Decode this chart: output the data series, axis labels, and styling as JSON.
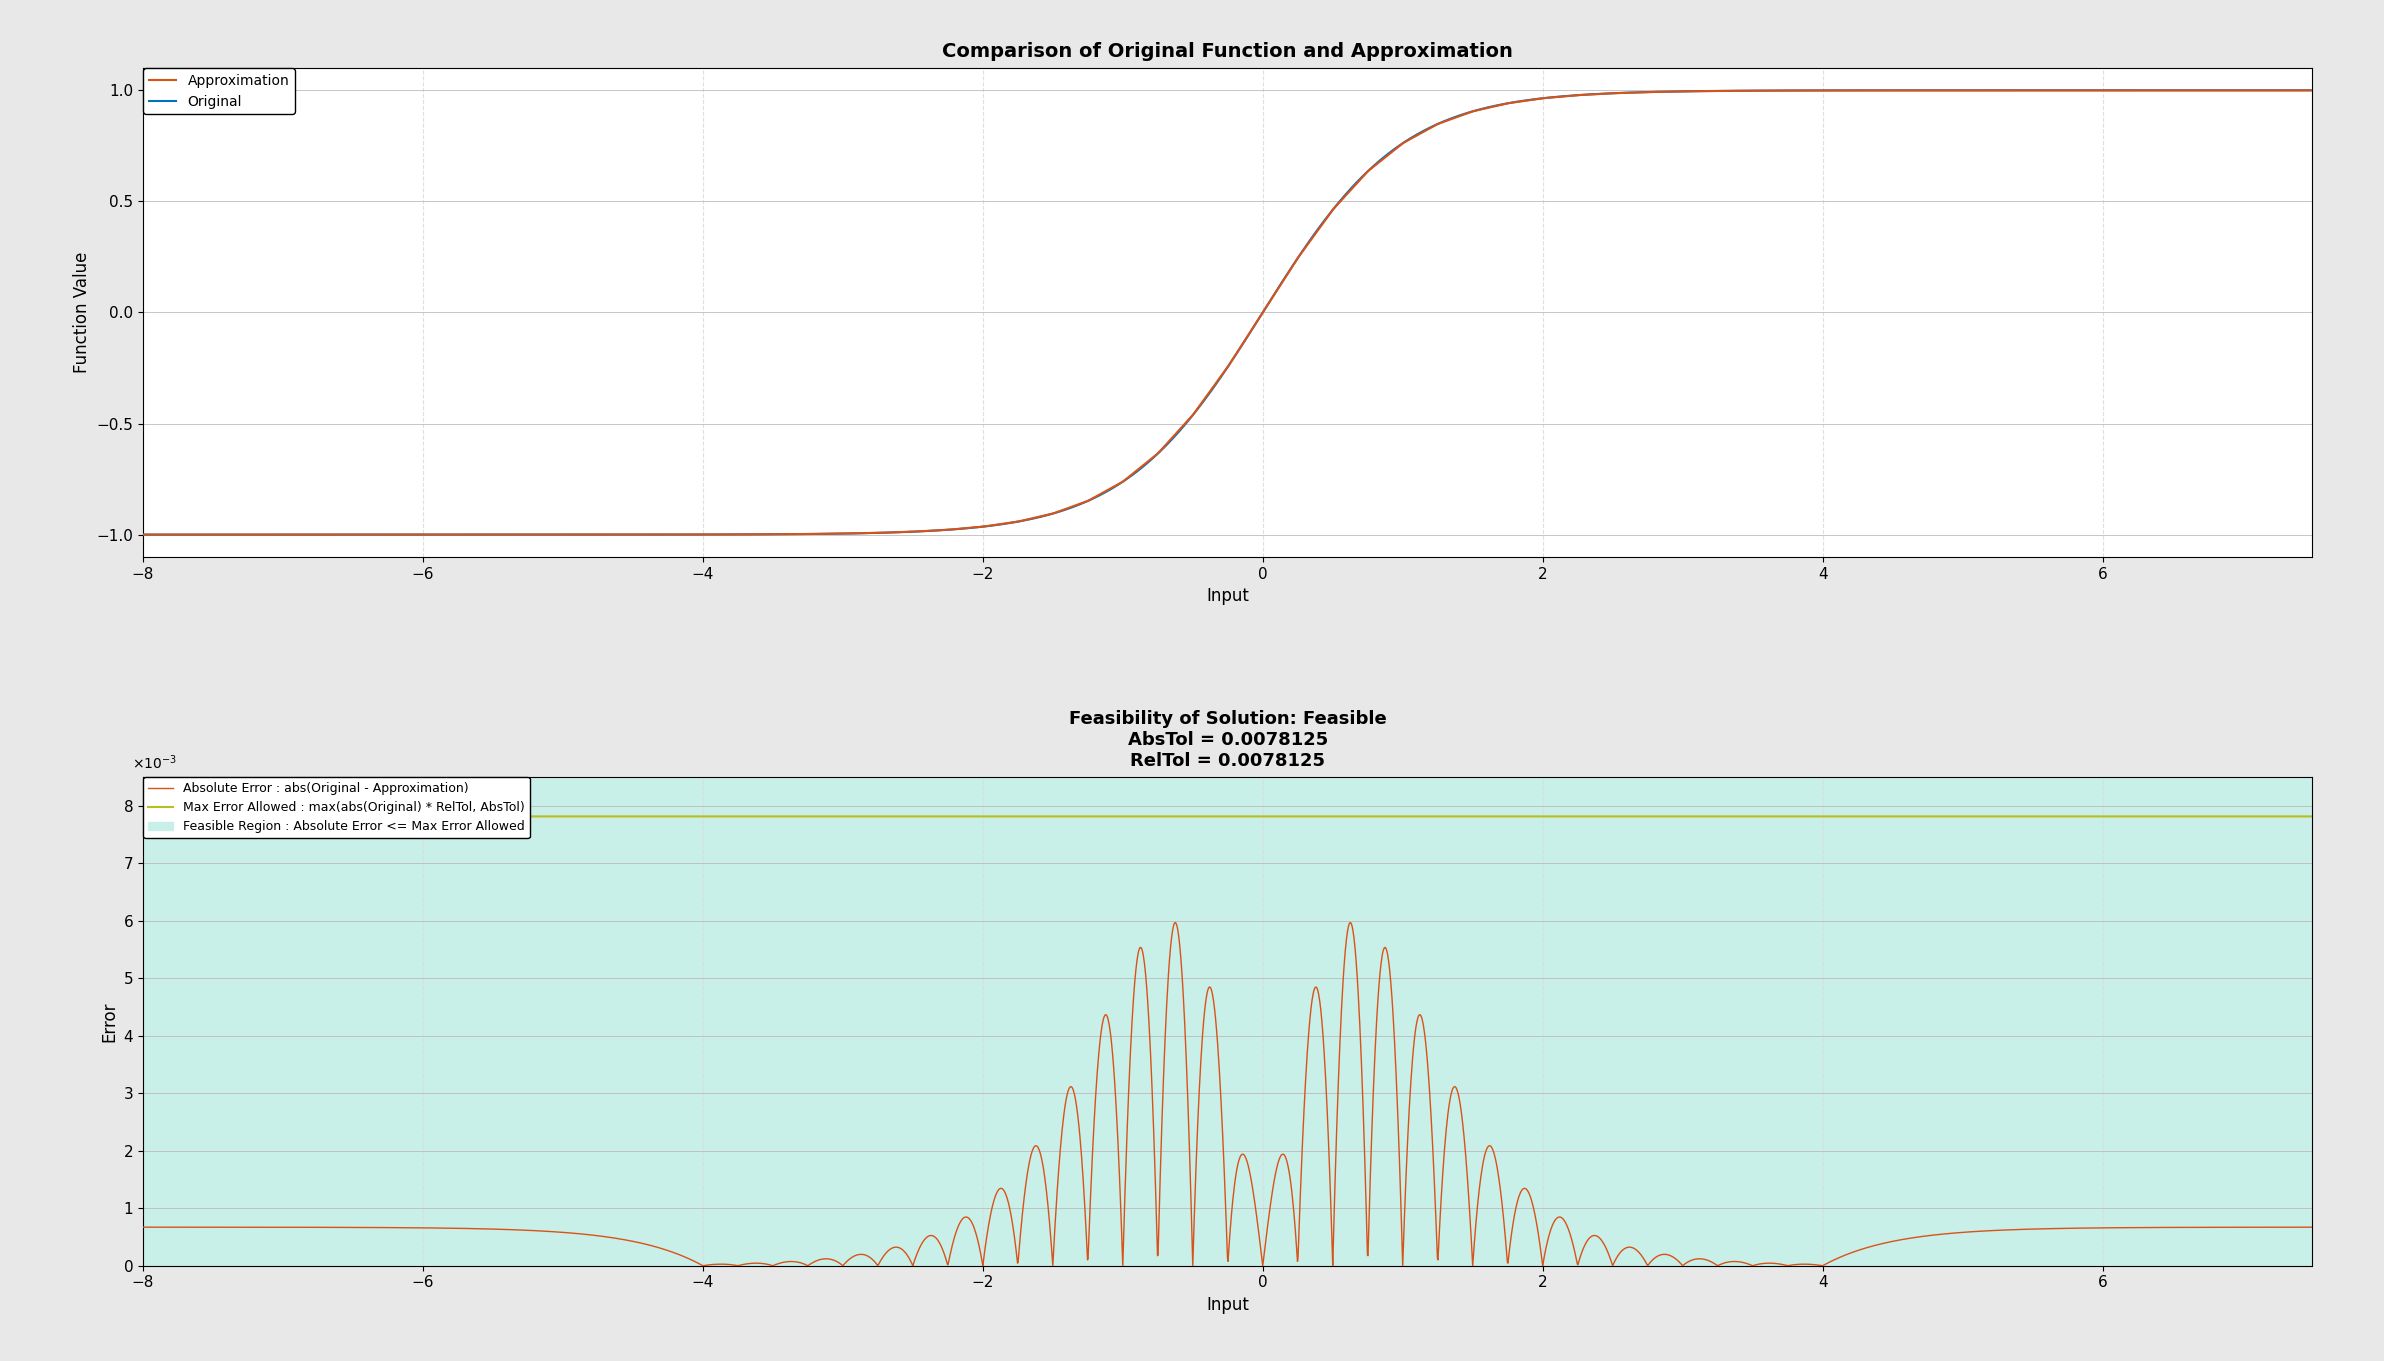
{
  "title1": "Comparison of Original Function and Approximation",
  "xlabel1": "Input",
  "ylabel1": "Function Value",
  "label_original": "Original",
  "label_approx": "Approximation",
  "color_original": "#0072BD",
  "color_approx": "#D95319",
  "xlim": [
    -8,
    7.5
  ],
  "ylim1": [
    -1.1,
    1.1
  ],
  "yticks1": [
    -1,
    -0.5,
    0,
    0.5,
    1
  ],
  "title2_line1": "Feasibility of Solution: Feasible",
  "title2_line2": "AbsTol = 0.0078125",
  "title2_line3": "RelTol = 0.0078125",
  "xlabel2": "Input",
  "ylabel2": "Error",
  "label_feasible": "Feasible Region : Absolute Error <= Max Error Allowed",
  "label_max_error": "Max Error Allowed : max(abs(Original) * RelTol, AbsTol)",
  "label_abs_error": "Absolute Error : abs(Original - Approximation)",
  "color_feasible_fill": "#C8EFE8",
  "color_max_error_line": "#BCBD22",
  "color_abs_error_line": "#D95319",
  "AbsTol": 0.0078125,
  "RelTol": 0.0078125,
  "ylim2": [
    0,
    0.0085
  ],
  "background_color": "#E8E8E8",
  "axes_background": "#FFFFFF",
  "grid_color_major": "#C0C0C0",
  "grid_color_minor": "#DCDCDC",
  "n_points": 4000,
  "n_segments": 32
}
